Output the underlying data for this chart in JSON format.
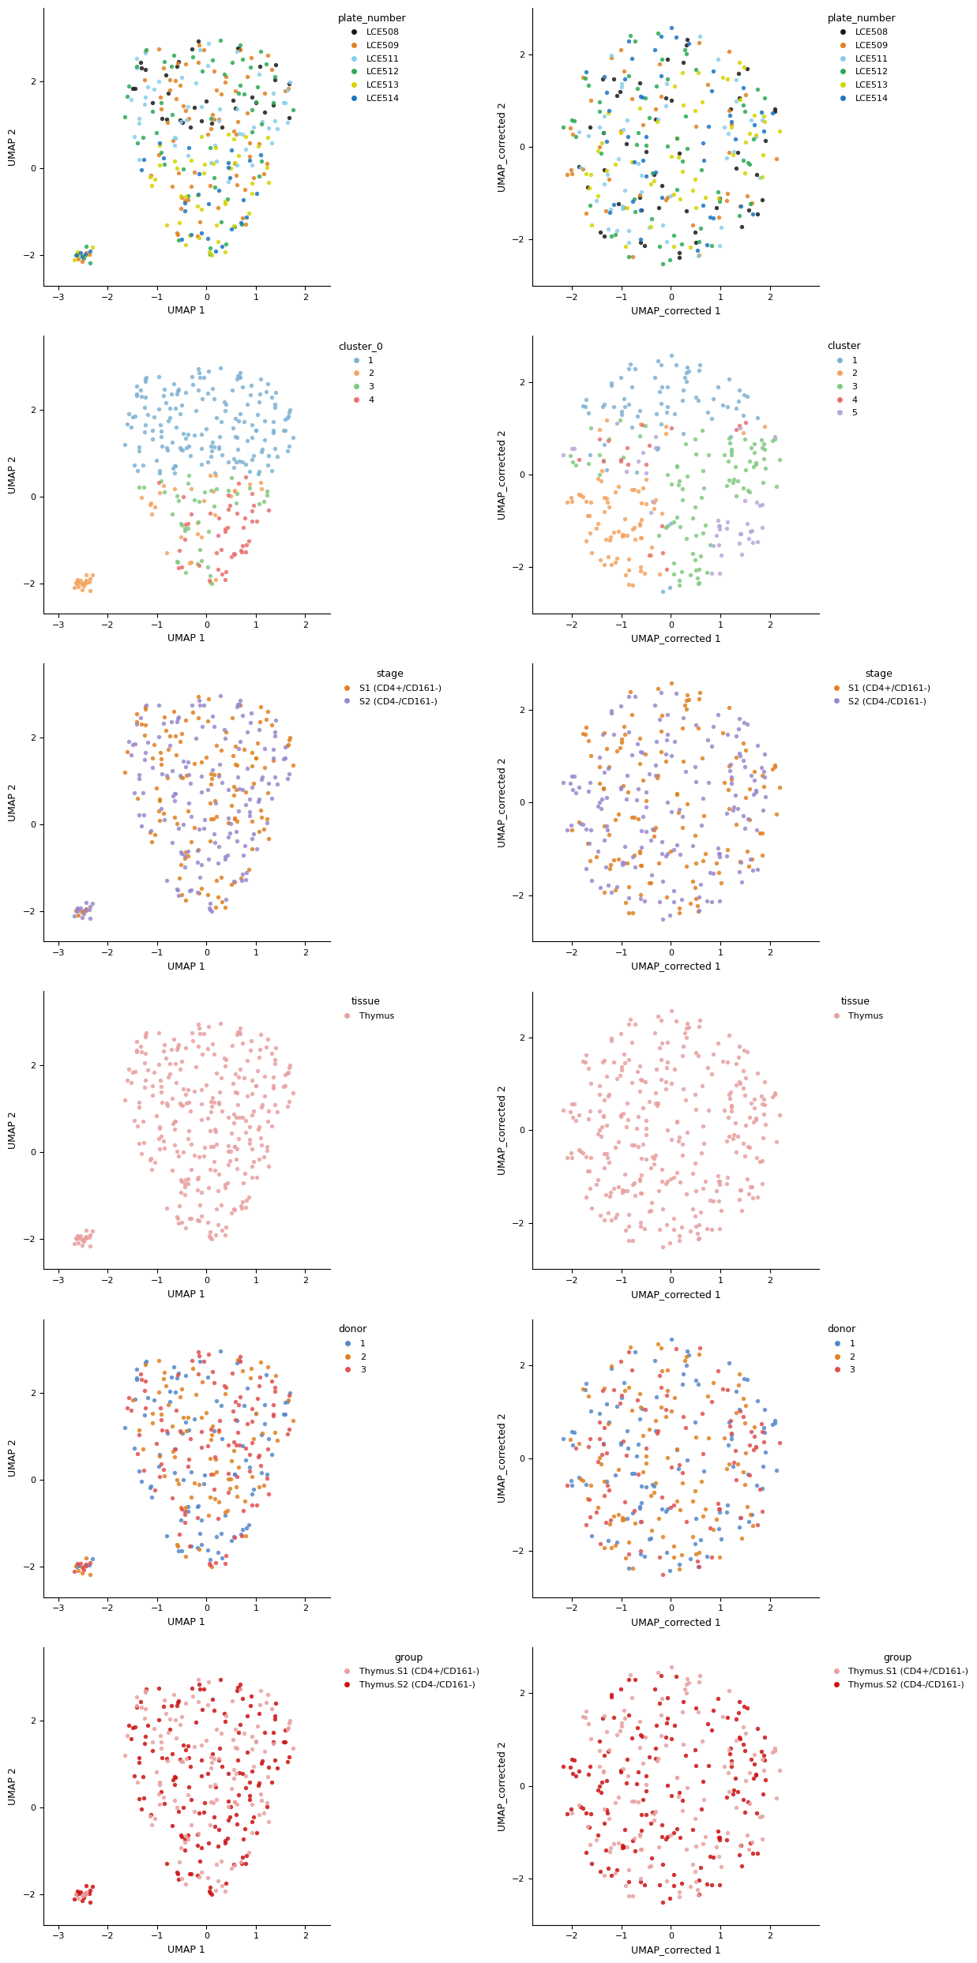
{
  "rows": 6,
  "cols": 2,
  "fig_width": 12.48,
  "fig_height": 24.96,
  "background": "#ffffff",
  "dot_size": 15,
  "dot_alpha": 0.85,
  "left_xlim": [
    -3.3,
    2.5
  ],
  "left_ylim": [
    -2.7,
    3.7
  ],
  "left_xticks": [
    -3,
    -2,
    -1,
    0,
    1,
    2
  ],
  "left_yticks": [
    -2,
    0,
    2
  ],
  "right_xlim": [
    -2.8,
    3.0
  ],
  "right_ylim": [
    -3.0,
    3.0
  ],
  "right_xticks": [
    -2,
    -1,
    0,
    1,
    2
  ],
  "right_yticks": [
    -2,
    0,
    2
  ],
  "left_xlabel": "UMAP 1",
  "left_ylabel": "UMAP 2",
  "right_xlabel": "UMAP_corrected 1",
  "right_ylabel": "UMAP_corrected 2",
  "plate_colors": {
    "LCE508": "#1a1a1a",
    "LCE509": "#e08020",
    "LCE511": "#87CEEB",
    "LCE512": "#2aaa55",
    "LCE513": "#d4d400",
    "LCE514": "#1a75c4"
  },
  "cluster_colors_left": {
    "1": "#7fb3d3",
    "2": "#f4a460",
    "3": "#82c982",
    "4": "#e87070"
  },
  "cluster_colors_right": {
    "1": "#7fb3d3",
    "2": "#f4a460",
    "3": "#82c982",
    "4": "#e87070",
    "5": "#b8a8d8"
  },
  "stage_colors": {
    "S1 (CD4+/CD161-)": "#e08020",
    "S2 (CD4-/CD161-)": "#9988cc"
  },
  "tissue_colors": {
    "Thymus": "#e8a0a0"
  },
  "donor_colors": {
    "1": "#5588cc",
    "2": "#e08020",
    "3": "#e05050"
  },
  "group_colors": {
    "Thymus.S1 (CD4+/CD161-)": "#e8a0a0",
    "Thymus.S2 (CD4-/CD161-)": "#cc1111"
  },
  "axis_label_fontsize": 9,
  "tick_fontsize": 8,
  "legend_fontsize": 8,
  "legend_title_fontsize": 9
}
